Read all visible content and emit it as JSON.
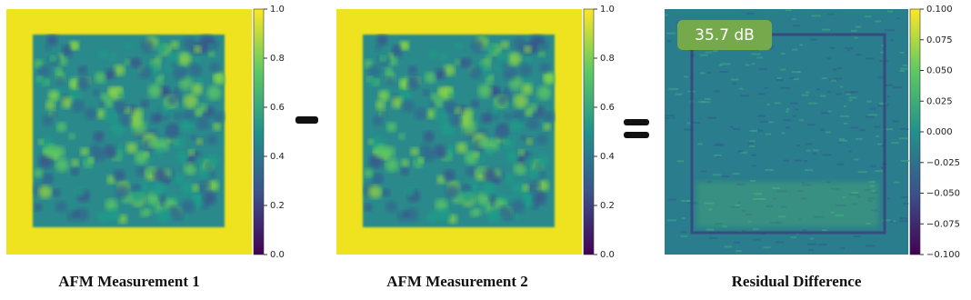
{
  "panels": [
    {
      "caption": "AFM Measurement 1",
      "colorbar": {
        "lim": [
          0,
          1
        ],
        "ticks": [
          {
            "value": 0,
            "label": "0.0"
          },
          {
            "value": 0.2,
            "label": "0.2"
          },
          {
            "value": 0.4,
            "label": "0.4"
          },
          {
            "value": 0.6,
            "label": "0.6"
          },
          {
            "value": 0.8,
            "label": "0.8"
          },
          {
            "value": 1,
            "label": "1.0"
          }
        ]
      }
    },
    {
      "caption": "AFM Measurement 2",
      "colorbar": {
        "lim": [
          0,
          1
        ],
        "ticks": [
          {
            "value": 0,
            "label": "0.0"
          },
          {
            "value": 0.2,
            "label": "0.2"
          },
          {
            "value": 0.4,
            "label": "0.4"
          },
          {
            "value": 0.6,
            "label": "0.6"
          },
          {
            "value": 0.8,
            "label": "0.8"
          },
          {
            "value": 1,
            "label": "1.0"
          }
        ]
      }
    },
    {
      "caption": "Residual Difference",
      "badge": "35.7 dB",
      "colorbar": {
        "lim": [
          -0.1,
          0.1
        ],
        "ticks": [
          {
            "value": -0.1,
            "label": "−0.100"
          },
          {
            "value": -0.075,
            "label": "−0.075"
          },
          {
            "value": -0.05,
            "label": "−0.050"
          },
          {
            "value": -0.025,
            "label": "−0.025"
          },
          {
            "value": 0,
            "label": "0.000"
          },
          {
            "value": 0.025,
            "label": "0.025"
          },
          {
            "value": 0.05,
            "label": "0.050"
          },
          {
            "value": 0.075,
            "label": "0.075"
          },
          {
            "value": 0.1,
            "label": "0.100"
          }
        ]
      }
    }
  ]
}
